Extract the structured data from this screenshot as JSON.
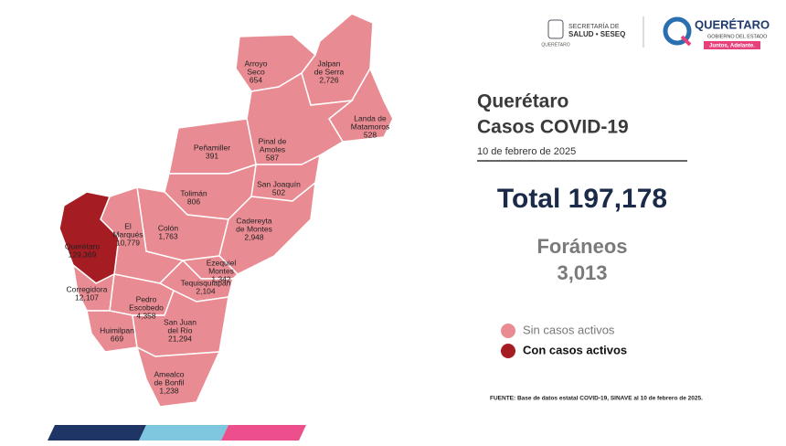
{
  "header": {
    "seseq_line1": "SECRETARÍA DE",
    "seseq_line2": "SALUD • SESEQ",
    "seseq_caption": "QUERÉTARO",
    "logo_title": "QUERÉTARO",
    "logo_subtitle": "GOBIERNO DEL ESTADO",
    "logo_slogan": "Juntos, Adelante."
  },
  "title": {
    "line1": "Querétaro",
    "line2": "Casos COVID-19",
    "date": "10 de febrero de 2025"
  },
  "total": "Total 197,178",
  "foraneos": {
    "label": "Foráneos",
    "value": "3,013"
  },
  "legend": [
    {
      "name": "Sin casos activos",
      "color": "#e98b92"
    },
    {
      "name": "Con casos activos",
      "color": "#a51c22"
    }
  ],
  "source": "FUENTE: Base de datos estatal COVID-19, SINAVE al 10 de febrero de 2025.",
  "municipalities": [
    {
      "name": [
        "Arroyo",
        "Seco"
      ],
      "cases": "654",
      "color": "#e98b92"
    },
    {
      "name": [
        "Jalpan",
        "de Serra"
      ],
      "cases": "2,726",
      "color": "#e98b92"
    },
    {
      "name": [
        "Landa de",
        "Matamoros"
      ],
      "cases": "528",
      "color": "#e98b92"
    },
    {
      "name": [
        "Pinal de",
        "Amoles"
      ],
      "cases": "587",
      "color": "#e98b92"
    },
    {
      "name": [
        "Peñamiller"
      ],
      "cases": "391",
      "color": "#e98b92"
    },
    {
      "name": [
        "San Joaquín"
      ],
      "cases": "502",
      "color": "#e98b92"
    },
    {
      "name": [
        "Tolimán"
      ],
      "cases": "806",
      "color": "#e98b92"
    },
    {
      "name": [
        "Colón"
      ],
      "cases": "1,763",
      "color": "#e98b92"
    },
    {
      "name": [
        "El",
        "Marqués"
      ],
      "cases": "10,779",
      "color": "#e98b92"
    },
    {
      "name": [
        "Querétaro"
      ],
      "cases": "129,369",
      "color": "#a51c22"
    },
    {
      "name": [
        "Cadereyta",
        "de Montes"
      ],
      "cases": "2,948",
      "color": "#e98b92"
    },
    {
      "name": [
        "Ezequiel",
        "Montes"
      ],
      "cases": "1,342",
      "color": "#e98b92"
    },
    {
      "name": [
        "Tequisquiapan"
      ],
      "cases": "2,104",
      "color": "#e98b92"
    },
    {
      "name": [
        "Corregidora"
      ],
      "cases": "12,107",
      "color": "#e98b92"
    },
    {
      "name": [
        "Pedro",
        "Escobedo"
      ],
      "cases": "4,358",
      "color": "#e98b92"
    },
    {
      "name": [
        "Huimilpan"
      ],
      "cases": "669",
      "color": "#e98b92"
    },
    {
      "name": [
        "San Juan",
        "del Río"
      ],
      "cases": "21,294",
      "color": "#e98b92"
    },
    {
      "name": [
        "Amealco",
        "de Bonfil"
      ],
      "cases": "1,238",
      "color": "#e98b92"
    }
  ]
}
